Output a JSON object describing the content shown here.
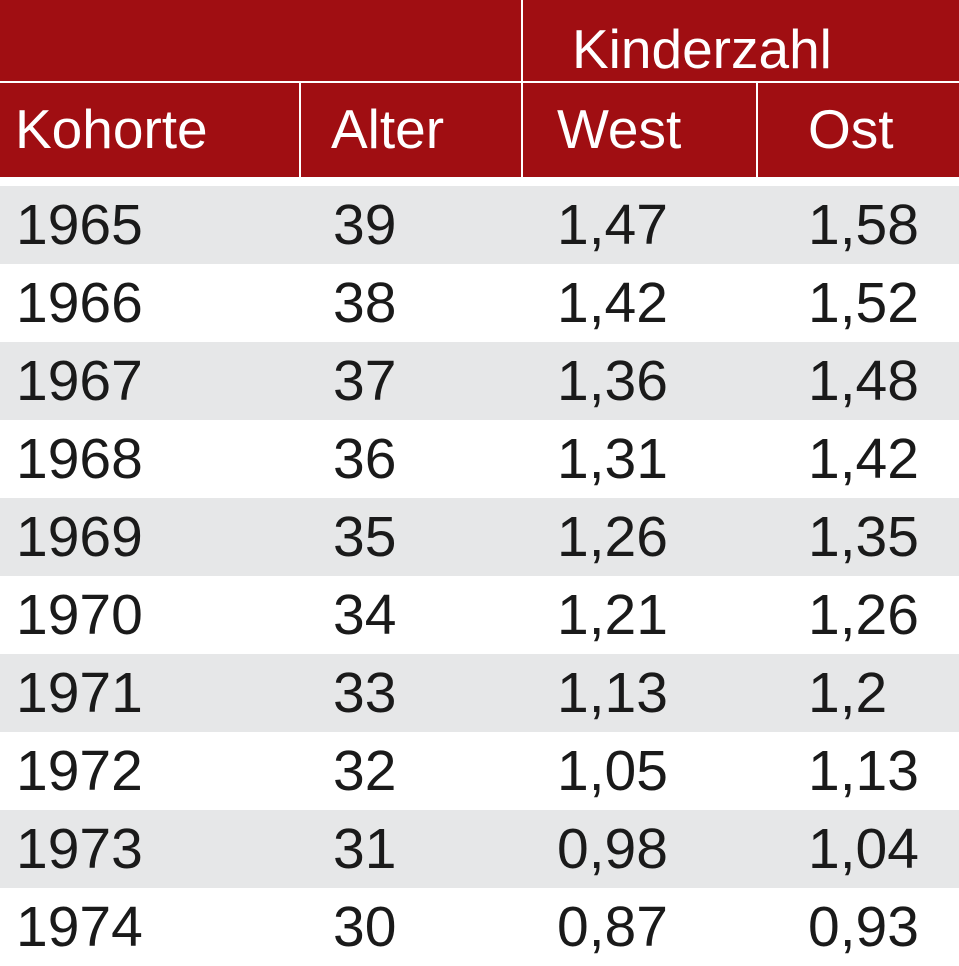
{
  "colors": {
    "header_bg": "#a00e12",
    "header_text": "#ffffff",
    "row_shaded": "#e6e7e8",
    "row_plain": "#ffffff",
    "body_text": "#1a1a1a"
  },
  "header": {
    "group_label": "Kinderzahl",
    "columns": [
      "Kohorte",
      "Alter",
      "West",
      "Ost"
    ]
  },
  "chart_data": {
    "type": "table",
    "group_header": "Kinderzahl",
    "columns": [
      "Kohorte",
      "Alter",
      "West",
      "Ost"
    ],
    "rows": [
      [
        "1965",
        "39",
        "1,47",
        "1,58"
      ],
      [
        "1966",
        "38",
        "1,42",
        "1,52"
      ],
      [
        "1967",
        "37",
        "1,36",
        "1,48"
      ],
      [
        "1968",
        "36",
        "1,31",
        "1,42"
      ],
      [
        "1969",
        "35",
        "1,26",
        "1,35"
      ],
      [
        "1970",
        "34",
        "1,21",
        "1,26"
      ],
      [
        "1971",
        "33",
        "1,13",
        "1,2"
      ],
      [
        "1972",
        "32",
        "1,05",
        "1,13"
      ],
      [
        "1973",
        "31",
        "0,98",
        "1,04"
      ],
      [
        "1974",
        "30",
        "0,87",
        "0,93"
      ]
    ]
  }
}
